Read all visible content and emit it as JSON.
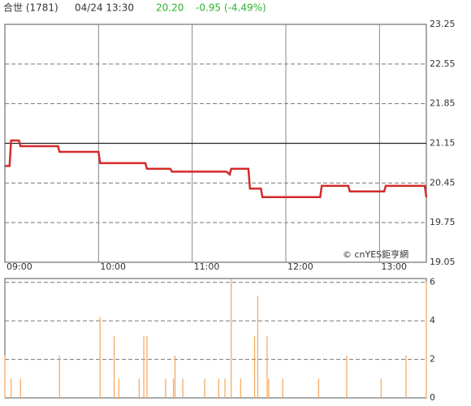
{
  "header": {
    "name": "合世 (1781)",
    "datetime": "04/24 13:30",
    "price": "20.20",
    "change": "-0.95 (-4.49%)"
  },
  "watermark": "© cnYES鉅亨網",
  "chart_data": [
    {
      "type": "line",
      "color": "#d42a2a",
      "xlim": [
        "09:00",
        "13:30"
      ],
      "xticks": [
        "09:00",
        "10:00",
        "11:00",
        "12:00",
        "13:00"
      ],
      "ylim": [
        19.05,
        23.25
      ],
      "yticks": [
        19.05,
        19.75,
        20.45,
        21.15,
        21.85,
        22.55,
        23.25
      ],
      "ref_line": 21.15,
      "x": [
        "09:00",
        "09:03",
        "09:04",
        "09:09",
        "09:10",
        "09:34",
        "09:35",
        "10:00",
        "10:01",
        "10:30",
        "10:31",
        "10:46",
        "10:47",
        "11:22",
        "11:24",
        "11:25",
        "11:36",
        "11:37",
        "11:44",
        "11:45",
        "12:22",
        "12:23",
        "12:40",
        "12:41",
        "13:03",
        "13:04",
        "13:29",
        "13:30"
      ],
      "values": [
        20.75,
        20.75,
        21.2,
        21.2,
        21.1,
        21.1,
        21.0,
        21.0,
        20.8,
        20.8,
        20.7,
        20.7,
        20.65,
        20.65,
        20.6,
        20.7,
        20.7,
        20.35,
        20.35,
        20.2,
        20.2,
        20.4,
        20.4,
        20.3,
        20.3,
        20.4,
        20.4,
        20.2
      ]
    },
    {
      "type": "bar",
      "color": "#f5a55a",
      "xlim": [
        "09:00",
        "13:30"
      ],
      "ylim": [
        0,
        6.2
      ],
      "yticks": [
        0,
        2,
        4,
        6
      ],
      "x": [
        "09:00",
        "09:04",
        "09:10",
        "09:35",
        "10:01",
        "10:10",
        "10:13",
        "10:26",
        "10:29",
        "10:31",
        "10:43",
        "10:48",
        "10:49",
        "10:54",
        "11:08",
        "11:17",
        "11:21",
        "11:25",
        "11:31",
        "11:40",
        "11:42",
        "11:48",
        "11:49",
        "11:58",
        "12:21",
        "12:39",
        "13:01",
        "13:17",
        "13:30"
      ],
      "values": [
        2.2,
        1,
        1,
        2.2,
        4.2,
        3.2,
        1,
        1,
        3.2,
        3.2,
        1,
        1,
        2.2,
        1,
        1,
        1,
        1,
        6.2,
        1,
        3.2,
        5.3,
        3.2,
        1,
        1,
        1,
        2.2,
        1,
        2.2,
        6
      ]
    }
  ]
}
